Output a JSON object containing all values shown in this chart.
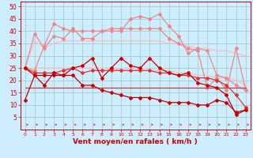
{
  "x": [
    0,
    1,
    2,
    3,
    4,
    5,
    6,
    7,
    8,
    9,
    10,
    11,
    12,
    13,
    14,
    15,
    16,
    17,
    18,
    19,
    20,
    21,
    22,
    23
  ],
  "line_lightest_1": [
    25,
    36,
    33,
    35,
    36,
    36,
    36,
    36,
    36,
    36,
    36,
    36,
    36,
    36,
    36,
    35,
    35,
    34,
    33,
    33,
    32,
    32,
    31,
    30
  ],
  "line_lightest_2": [
    25,
    25,
    25,
    25,
    25,
    25,
    25,
    25,
    25,
    25,
    24,
    24,
    24,
    24,
    24,
    24,
    23,
    23,
    22,
    22,
    21,
    21,
    20,
    18
  ],
  "line_light_1": [
    25,
    39,
    33,
    38,
    37,
    41,
    37,
    37,
    40,
    41,
    41,
    41,
    41,
    41,
    41,
    37,
    35,
    33,
    32,
    17,
    21,
    16,
    33,
    16
  ],
  "line_light_2": [
    25,
    24,
    34,
    43,
    41,
    40,
    40,
    40,
    40,
    40,
    40,
    45,
    46,
    45,
    47,
    42,
    38,
    31,
    33,
    32,
    22,
    21,
    18,
    16
  ],
  "line_med_1": [
    25,
    23,
    23,
    23,
    24,
    25,
    23,
    24,
    24,
    24,
    24,
    24,
    24,
    24,
    23,
    23,
    22,
    22,
    21,
    21,
    20,
    18,
    14,
    9
  ],
  "line_med_2": [
    17,
    17,
    17,
    17,
    17,
    17,
    17,
    17,
    17,
    17,
    17,
    17,
    17,
    17,
    17,
    17,
    17,
    17,
    17,
    17,
    17,
    17,
    17,
    17
  ],
  "line_dark_1": [
    12,
    22,
    18,
    23,
    22,
    25,
    26,
    29,
    21,
    25,
    29,
    26,
    25,
    29,
    25,
    23,
    22,
    23,
    19,
    18,
    17,
    14,
    6,
    8
  ],
  "line_dark_2": [
    25,
    22,
    22,
    22,
    22,
    22,
    18,
    18,
    16,
    15,
    14,
    13,
    13,
    13,
    12,
    11,
    11,
    11,
    10,
    10,
    12,
    11,
    7,
    8
  ],
  "bg_color": "#cceeff",
  "grid_color": "#aacccc",
  "color_dark_red": "#cc0000",
  "color_medium_red": "#dd3333",
  "color_light_red": "#ee8888",
  "color_lightest_red": "#ffbbbb",
  "xlabel": "Vent moyen/en rafales ( km/h )",
  "yticks": [
    5,
    10,
    15,
    20,
    25,
    30,
    35,
    40,
    45,
    50
  ],
  "xlim": [
    -0.5,
    23.5
  ],
  "ylim": [
    0,
    52
  ]
}
